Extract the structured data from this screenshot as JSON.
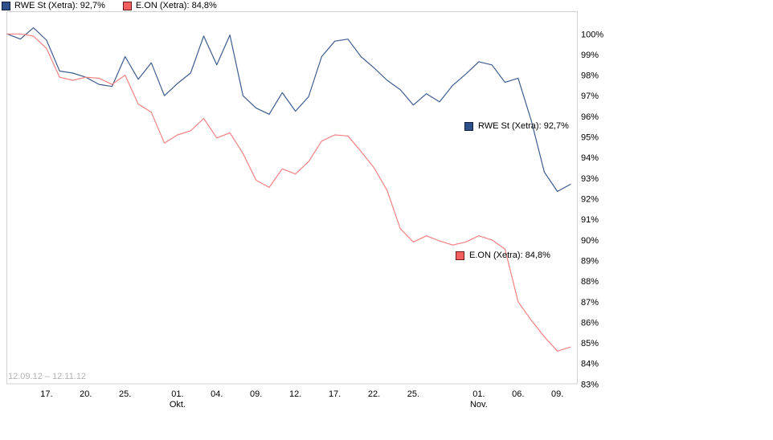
{
  "legend": {
    "items": [
      {
        "id": "rwe",
        "label": "RWE St (Xetra): 92,7%"
      },
      {
        "id": "eon",
        "label": "E.ON (Xetra): 84,8%"
      }
    ]
  },
  "annotations": {
    "rwe_label": "RWE St (Xetra): 92,7%",
    "eon_label": "E.ON (Xetra): 84,8%",
    "date_range": "12.09.12 – 12.11.12"
  },
  "colors": {
    "rwe_line": "#3d5c8f",
    "rwe_swatch_fill": "#2d4f8a",
    "rwe_swatch_border": "#101f3c",
    "eon_line": "#f28282",
    "eon_swatch_fill": "#f25f5f",
    "eon_swatch_border": "#6e1a1a",
    "plot_border": "#d2d2d2",
    "range_text": "#b3b3b3"
  },
  "chart_data": {
    "type": "line",
    "title": "",
    "xlabel": "",
    "ylabel": "",
    "legend_position": "top-left",
    "grid": false,
    "ylim": [
      83,
      101.1
    ],
    "y_ticks": [
      {
        "label": "100%",
        "value": 100
      },
      {
        "label": "99%",
        "value": 99
      },
      {
        "label": "98%",
        "value": 98
      },
      {
        "label": "97%",
        "value": 97
      },
      {
        "label": "96%",
        "value": 96
      },
      {
        "label": "95%",
        "value": 95
      },
      {
        "label": "94%",
        "value": 94
      },
      {
        "label": "93%",
        "value": 93
      },
      {
        "label": "92%",
        "value": 92
      },
      {
        "label": "91%",
        "value": 91
      },
      {
        "label": "90%",
        "value": 90
      },
      {
        "label": "89%",
        "value": 89
      },
      {
        "label": "88%",
        "value": 88
      },
      {
        "label": "87%",
        "value": 87
      },
      {
        "label": "86%",
        "value": 86
      },
      {
        "label": "85%",
        "value": 85
      },
      {
        "label": "84%",
        "value": 84
      },
      {
        "label": "83%",
        "value": 83
      }
    ],
    "x_ticks": [
      {
        "label": "17.",
        "sub": "",
        "index": 3
      },
      {
        "label": "20.",
        "sub": "",
        "index": 6
      },
      {
        "label": "25.",
        "sub": "",
        "index": 9
      },
      {
        "label": "01.",
        "sub": "Okt.",
        "index": 13
      },
      {
        "label": "04.",
        "sub": "",
        "index": 16
      },
      {
        "label": "09.",
        "sub": "",
        "index": 19
      },
      {
        "label": "12.",
        "sub": "",
        "index": 22
      },
      {
        "label": "17.",
        "sub": "",
        "index": 25
      },
      {
        "label": "22.",
        "sub": "",
        "index": 28
      },
      {
        "label": "25.",
        "sub": "",
        "index": 31
      },
      {
        "label": "01.",
        "sub": "Nov.",
        "index": 36
      },
      {
        "label": "06.",
        "sub": "",
        "index": 39
      },
      {
        "label": "09.",
        "sub": "",
        "index": 42
      }
    ],
    "x_range_note": "12.09.12 – 12.11.12",
    "series": [
      {
        "name": "RWE St (Xetra)",
        "final_value_label": "92,7%",
        "color": "#3d5c8f",
        "values": [
          100.0,
          99.75,
          100.3,
          99.7,
          98.2,
          98.1,
          97.9,
          97.55,
          97.45,
          98.9,
          97.8,
          98.6,
          97.0,
          97.6,
          98.1,
          99.9,
          98.5,
          99.95,
          97.0,
          96.4,
          96.1,
          97.15,
          96.25,
          96.95,
          98.9,
          99.65,
          99.75,
          98.9,
          98.35,
          97.75,
          97.3,
          96.55,
          97.1,
          96.7,
          97.5,
          98.05,
          98.65,
          98.5,
          97.65,
          97.85,
          95.8,
          93.3,
          92.35,
          92.7
        ]
      },
      {
        "name": "E.ON (Xetra)",
        "final_value_label": "84,8%",
        "color": "#f28282",
        "values": [
          100.0,
          100.0,
          99.9,
          99.3,
          97.9,
          97.75,
          97.9,
          97.85,
          97.55,
          98.0,
          96.6,
          96.2,
          94.7,
          95.1,
          95.3,
          95.9,
          94.95,
          95.2,
          94.2,
          92.9,
          92.55,
          93.45,
          93.2,
          93.8,
          94.8,
          95.1,
          95.05,
          94.3,
          93.5,
          92.4,
          90.55,
          89.9,
          90.2,
          89.95,
          89.75,
          89.9,
          90.2,
          90.0,
          89.55,
          87.0,
          86.1,
          85.3,
          84.6,
          84.8
        ]
      }
    ]
  }
}
